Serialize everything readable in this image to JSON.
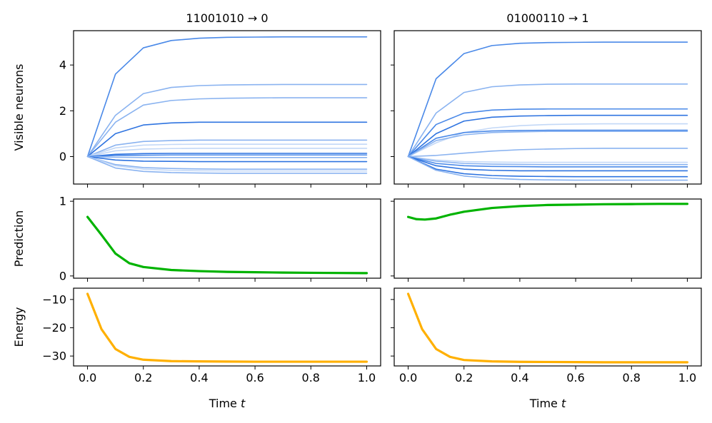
{
  "chart_data": [
    {
      "type": "line",
      "panel": "visible-neurons",
      "column": "left",
      "title": "11001010 → 0",
      "xlabel": "",
      "ylabel": "Visible neurons",
      "xlim": [
        -0.05,
        1.05
      ],
      "ylim": [
        -1.2,
        5.5
      ],
      "xticks": [
        0.0,
        0.2,
        0.4,
        0.6,
        0.8,
        1.0
      ],
      "yticks": [
        0,
        2,
        4
      ],
      "ytick_labels": [
        "0",
        "2",
        "4"
      ],
      "x": [
        0.0,
        0.1,
        0.2,
        0.3,
        0.4,
        0.5,
        0.6,
        0.7,
        0.8,
        0.9,
        1.0
      ],
      "series": [
        {
          "name": "v1",
          "values": [
            0.0,
            3.6,
            4.75,
            5.07,
            5.17,
            5.21,
            5.22,
            5.23,
            5.23,
            5.23,
            5.23
          ],
          "color": "#4a89e8",
          "opacity": 1.0
        },
        {
          "name": "v2",
          "values": [
            0.0,
            1.8,
            2.75,
            3.02,
            3.1,
            3.13,
            3.14,
            3.15,
            3.15,
            3.15,
            3.15
          ],
          "color": "#8ab3f0",
          "opacity": 1.0
        },
        {
          "name": "v3",
          "values": [
            0.0,
            1.5,
            2.25,
            2.45,
            2.52,
            2.55,
            2.56,
            2.57,
            2.57,
            2.57,
            2.57
          ],
          "color": "#8ab3f0",
          "opacity": 1.0
        },
        {
          "name": "v4",
          "values": [
            0.0,
            1.0,
            1.38,
            1.47,
            1.5,
            1.5,
            1.5,
            1.5,
            1.5,
            1.5,
            1.5
          ],
          "color": "#2f74e0",
          "opacity": 1.0
        },
        {
          "name": "v5",
          "values": [
            0.0,
            0.5,
            0.66,
            0.7,
            0.72,
            0.72,
            0.72,
            0.72,
            0.72,
            0.72,
            0.72
          ],
          "color": "#8ab3f0",
          "opacity": 1.0
        },
        {
          "name": "v6",
          "values": [
            0.0,
            0.38,
            0.5,
            0.53,
            0.54,
            0.54,
            0.54,
            0.54,
            0.54,
            0.54,
            0.54
          ],
          "color": "#c3d8f7",
          "opacity": 1.0
        },
        {
          "name": "v7",
          "values": [
            0.0,
            0.25,
            0.33,
            0.35,
            0.36,
            0.36,
            0.36,
            0.36,
            0.36,
            0.36,
            0.36
          ],
          "color": "#c3d8f7",
          "opacity": 1.0
        },
        {
          "name": "v8",
          "values": [
            0.0,
            0.1,
            0.13,
            0.14,
            0.14,
            0.14,
            0.14,
            0.14,
            0.14,
            0.14,
            0.14
          ],
          "color": "#2f74e0",
          "opacity": 1.0
        },
        {
          "name": "v9",
          "values": [
            0.0,
            0.05,
            0.06,
            0.07,
            0.07,
            0.07,
            0.07,
            0.07,
            0.07,
            0.07,
            0.07
          ],
          "color": "#4a89e8",
          "opacity": 1.0
        },
        {
          "name": "v10",
          "values": [
            0.0,
            -0.03,
            -0.04,
            -0.04,
            -0.04,
            -0.04,
            -0.04,
            -0.04,
            -0.04,
            -0.04,
            -0.04
          ],
          "color": "#8ab3f0",
          "opacity": 1.0
        },
        {
          "name": "v11",
          "values": [
            0.0,
            -0.15,
            -0.2,
            -0.21,
            -0.22,
            -0.22,
            -0.22,
            -0.22,
            -0.22,
            -0.22,
            -0.22
          ],
          "color": "#2f74e0",
          "opacity": 1.0
        },
        {
          "name": "v12",
          "values": [
            0.0,
            -0.35,
            -0.48,
            -0.52,
            -0.54,
            -0.55,
            -0.55,
            -0.55,
            -0.55,
            -0.55,
            -0.55
          ],
          "color": "#8ab3f0",
          "opacity": 1.0
        },
        {
          "name": "v13",
          "values": [
            0.0,
            -0.4,
            -0.55,
            -0.6,
            -0.62,
            -0.63,
            -0.63,
            -0.63,
            -0.63,
            -0.63,
            -0.63
          ],
          "color": "#c3d8f7",
          "opacity": 1.0
        },
        {
          "name": "v14",
          "values": [
            0.0,
            -0.5,
            -0.65,
            -0.7,
            -0.72,
            -0.73,
            -0.73,
            -0.73,
            -0.73,
            -0.73,
            -0.73
          ],
          "color": "#8ab3f0",
          "opacity": 1.0
        }
      ]
    },
    {
      "type": "line",
      "panel": "visible-neurons",
      "column": "right",
      "title": "01000110 → 1",
      "xlabel": "",
      "ylabel": "",
      "xlim": [
        -0.05,
        1.05
      ],
      "ylim": [
        -1.2,
        5.5
      ],
      "xticks": [
        0.0,
        0.2,
        0.4,
        0.6,
        0.8,
        1.0
      ],
      "yticks": [
        0,
        2,
        4
      ],
      "ytick_labels": [
        "",
        "",
        ""
      ],
      "x": [
        0.0,
        0.1,
        0.2,
        0.3,
        0.4,
        0.5,
        0.6,
        0.7,
        0.8,
        0.9,
        1.0
      ],
      "series": [
        {
          "name": "v1",
          "values": [
            0.0,
            3.4,
            4.5,
            4.85,
            4.95,
            4.98,
            4.99,
            5.0,
            5.0,
            5.0,
            5.0
          ],
          "color": "#4a89e8",
          "opacity": 1.0
        },
        {
          "name": "v2",
          "values": [
            0.0,
            1.9,
            2.8,
            3.05,
            3.13,
            3.16,
            3.17,
            3.17,
            3.17,
            3.17,
            3.17
          ],
          "color": "#8ab3f0",
          "opacity": 1.0
        },
        {
          "name": "v3",
          "values": [
            0.0,
            1.4,
            1.9,
            2.03,
            2.07,
            2.08,
            2.08,
            2.08,
            2.08,
            2.08,
            2.08
          ],
          "color": "#4a89e8",
          "opacity": 1.0
        },
        {
          "name": "v4",
          "values": [
            0.0,
            1.0,
            1.55,
            1.72,
            1.77,
            1.79,
            1.8,
            1.8,
            1.8,
            1.8,
            1.8
          ],
          "color": "#2f74e0",
          "opacity": 1.0
        },
        {
          "name": "v5",
          "values": [
            0.0,
            0.6,
            1.05,
            1.25,
            1.35,
            1.4,
            1.42,
            1.43,
            1.43,
            1.43,
            1.43
          ],
          "color": "#c3d8f7",
          "opacity": 1.0
        },
        {
          "name": "v6",
          "values": [
            0.0,
            0.8,
            1.05,
            1.12,
            1.14,
            1.15,
            1.15,
            1.15,
            1.15,
            1.15,
            1.15
          ],
          "color": "#4a89e8",
          "opacity": 1.0
        },
        {
          "name": "v7",
          "values": [
            0.0,
            0.7,
            0.95,
            1.05,
            1.08,
            1.1,
            1.1,
            1.1,
            1.1,
            1.1,
            1.1
          ],
          "color": "#8ab3f0",
          "opacity": 1.0
        },
        {
          "name": "v8",
          "values": [
            0.0,
            0.05,
            0.15,
            0.24,
            0.3,
            0.33,
            0.35,
            0.36,
            0.36,
            0.36,
            0.36
          ],
          "color": "#8ab3f0",
          "opacity": 1.0
        },
        {
          "name": "v9",
          "values": [
            0.0,
            -0.15,
            -0.22,
            -0.24,
            -0.25,
            -0.25,
            -0.25,
            -0.25,
            -0.25,
            -0.25,
            -0.25
          ],
          "color": "#c3d8f7",
          "opacity": 1.0
        },
        {
          "name": "v10",
          "values": [
            0.0,
            -0.2,
            -0.3,
            -0.33,
            -0.34,
            -0.35,
            -0.35,
            -0.35,
            -0.35,
            -0.35,
            -0.35
          ],
          "color": "#8ab3f0",
          "opacity": 1.0
        },
        {
          "name": "v11",
          "values": [
            0.0,
            -0.3,
            -0.4,
            -0.43,
            -0.44,
            -0.45,
            -0.45,
            -0.45,
            -0.45,
            -0.45,
            -0.45
          ],
          "color": "#4a89e8",
          "opacity": 1.0
        },
        {
          "name": "v12",
          "values": [
            0.0,
            -0.4,
            -0.55,
            -0.6,
            -0.62,
            -0.62,
            -0.62,
            -0.62,
            -0.62,
            -0.62,
            -0.62
          ],
          "color": "#2f74e0",
          "opacity": 1.0
        },
        {
          "name": "v13",
          "values": [
            0.0,
            -0.55,
            -0.75,
            -0.83,
            -0.86,
            -0.87,
            -0.88,
            -0.88,
            -0.88,
            -0.88,
            -0.88
          ],
          "color": "#2f74e0",
          "opacity": 1.0
        },
        {
          "name": "v14",
          "values": [
            0.0,
            -0.6,
            -0.85,
            -0.95,
            -1.0,
            -1.02,
            -1.03,
            -1.03,
            -1.03,
            -1.03,
            -1.03
          ],
          "color": "#8ab3f0",
          "opacity": 1.0
        }
      ]
    },
    {
      "type": "line",
      "panel": "prediction",
      "column": "left",
      "title": "",
      "xlabel": "",
      "ylabel": "Prediction",
      "xlim": [
        -0.05,
        1.05
      ],
      "ylim": [
        -0.03,
        1.03
      ],
      "xticks": [
        0.0,
        0.2,
        0.4,
        0.6,
        0.8,
        1.0
      ],
      "yticks": [
        0,
        1
      ],
      "ytick_labels": [
        "0",
        "1"
      ],
      "x": [
        0.0,
        0.05,
        0.1,
        0.15,
        0.2,
        0.3,
        0.4,
        0.5,
        0.6,
        0.7,
        0.8,
        0.9,
        1.0
      ],
      "series": [
        {
          "name": "prediction",
          "values": [
            0.79,
            0.55,
            0.3,
            0.17,
            0.12,
            0.08,
            0.065,
            0.055,
            0.05,
            0.045,
            0.042,
            0.04,
            0.038
          ],
          "color": "#00b300",
          "opacity": 1.0
        }
      ]
    },
    {
      "type": "line",
      "panel": "prediction",
      "column": "right",
      "title": "",
      "xlabel": "",
      "ylabel": "",
      "xlim": [
        -0.05,
        1.05
      ],
      "ylim": [
        -0.03,
        1.03
      ],
      "xticks": [
        0.0,
        0.2,
        0.4,
        0.6,
        0.8,
        1.0
      ],
      "yticks": [
        0,
        1
      ],
      "ytick_labels": [
        "",
        ""
      ],
      "x": [
        0.0,
        0.03,
        0.06,
        0.1,
        0.15,
        0.2,
        0.3,
        0.4,
        0.5,
        0.6,
        0.7,
        0.8,
        0.9,
        1.0
      ],
      "series": [
        {
          "name": "prediction",
          "values": [
            0.79,
            0.76,
            0.755,
            0.77,
            0.82,
            0.86,
            0.91,
            0.935,
            0.95,
            0.955,
            0.96,
            0.962,
            0.965,
            0.965
          ],
          "color": "#00b300",
          "opacity": 1.0
        }
      ]
    },
    {
      "type": "line",
      "panel": "energy",
      "column": "left",
      "title": "",
      "xlabel": "Time t",
      "ylabel": "Energy",
      "xlim": [
        -0.05,
        1.05
      ],
      "ylim": [
        -33.5,
        -6
      ],
      "xticks": [
        0.0,
        0.2,
        0.4,
        0.6,
        0.8,
        1.0
      ],
      "xtick_labels": [
        "0.0",
        "0.2",
        "0.4",
        "0.6",
        "0.8",
        "1.0"
      ],
      "yticks": [
        -10,
        -20,
        -30
      ],
      "ytick_labels": [
        "−10",
        "−20",
        "−30"
      ],
      "x": [
        0.0,
        0.05,
        0.1,
        0.15,
        0.2,
        0.3,
        0.4,
        0.5,
        0.6,
        0.7,
        0.8,
        0.9,
        1.0
      ],
      "series": [
        {
          "name": "energy",
          "values": [
            -8,
            -20.5,
            -27.5,
            -30.3,
            -31.3,
            -31.8,
            -31.9,
            -31.95,
            -32.0,
            -32.0,
            -32.0,
            -32.0,
            -32.0
          ],
          "color": "#ffb000",
          "opacity": 1.0
        }
      ]
    },
    {
      "type": "line",
      "panel": "energy",
      "column": "right",
      "title": "",
      "xlabel": "Time t",
      "ylabel": "",
      "xlim": [
        -0.05,
        1.05
      ],
      "ylim": [
        -33.5,
        -6
      ],
      "xticks": [
        0.0,
        0.2,
        0.4,
        0.6,
        0.8,
        1.0
      ],
      "xtick_labels": [
        "0.0",
        "0.2",
        "0.4",
        "0.6",
        "0.8",
        "1.0"
      ],
      "yticks": [
        -10,
        -20,
        -30
      ],
      "ytick_labels": [
        "",
        "",
        ""
      ],
      "x": [
        0.0,
        0.05,
        0.1,
        0.15,
        0.2,
        0.3,
        0.4,
        0.5,
        0.6,
        0.7,
        0.8,
        0.9,
        1.0
      ],
      "series": [
        {
          "name": "energy",
          "values": [
            -8,
            -20.5,
            -27.5,
            -30.3,
            -31.4,
            -31.9,
            -32.05,
            -32.1,
            -32.15,
            -32.2,
            -32.2,
            -32.2,
            -32.2
          ],
          "color": "#ffb000",
          "opacity": 1.0
        }
      ]
    }
  ]
}
